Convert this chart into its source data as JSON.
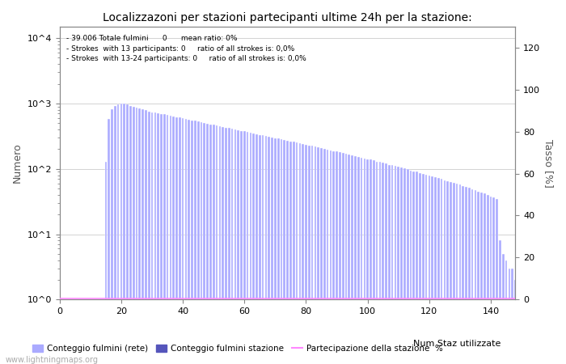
{
  "title": "Localizzazoni per stazioni partecipanti ultime 24h per la stazione:",
  "ylabel_left": "Numero",
  "ylabel_right": "Tasso [%]",
  "annotation_lines": [
    "39.006 Totale fulmini      0      mean ratio: 0%",
    "Strokes  with 13 participants: 0     ratio of all strokes is: 0,0%",
    "Strokes  with 13-24 participants: 0     ratio of all strokes is: 0,0%"
  ],
  "watermark": "www.lightningmaps.org",
  "bar_color_light": "#aaaaff",
  "bar_color_dark": "#5555bb",
  "line_color": "#ff88ff",
  "ylim_left": [
    1,
    15000
  ],
  "ylim_right": [
    0,
    130
  ],
  "xlim": [
    0,
    148
  ],
  "xticks": [
    0,
    20,
    40,
    60,
    80,
    100,
    120,
    140
  ],
  "yticks_right": [
    0,
    20,
    40,
    60,
    80,
    100,
    120
  ],
  "legend_labels": [
    "Conteggio fulmini (rete)",
    "Conteggio fulmini stazione",
    "Num Staz utilizzate",
    "Partecipazione della stazione  %"
  ],
  "bar_start_x": 15,
  "bar_values": [
    130,
    580,
    820,
    920,
    980,
    1000,
    1000,
    960,
    920,
    890,
    870,
    840,
    810,
    790,
    760,
    740,
    725,
    710,
    695,
    680,
    665,
    650,
    635,
    620,
    608,
    595,
    582,
    568,
    555,
    542,
    530,
    518,
    505,
    493,
    482,
    470,
    460,
    450,
    440,
    430,
    420,
    410,
    400,
    392,
    383,
    374,
    366,
    357,
    349,
    341,
    333,
    325,
    318,
    310,
    303,
    296,
    289,
    283,
    276,
    270,
    264,
    258,
    252,
    246,
    240,
    234,
    229,
    224,
    218,
    213,
    208,
    203,
    198,
    193,
    188,
    184,
    179,
    175,
    170,
    166,
    162,
    157,
    153,
    149,
    145,
    141,
    138,
    134,
    130,
    127,
    123,
    120,
    116,
    113,
    110,
    107,
    104,
    101,
    98,
    95,
    92,
    90,
    87,
    84,
    82,
    79,
    77,
    74,
    72,
    70,
    67,
    65,
    63,
    61,
    59,
    57,
    55,
    53,
    51,
    49,
    47,
    45,
    44,
    42,
    40,
    38,
    37,
    35,
    8,
    5,
    4,
    3,
    3,
    2,
    2,
    1
  ]
}
